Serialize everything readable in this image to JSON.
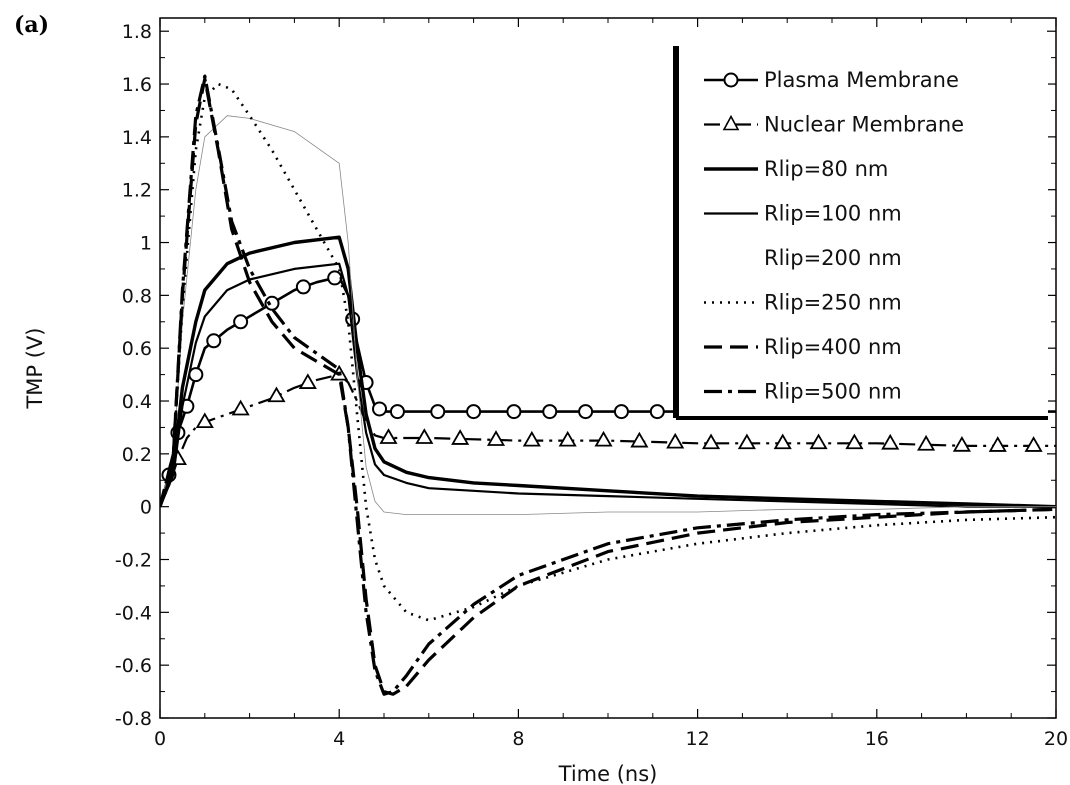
{
  "panel_label": "(a)",
  "chart_data": {
    "type": "line",
    "xlabel": "Time (ns)",
    "ylabel": "TMP (V)",
    "xlim": [
      0,
      20
    ],
    "ylim": [
      -0.8,
      1.85
    ],
    "xticks": [
      0,
      4,
      8,
      12,
      16,
      20
    ],
    "yticks": [
      -0.8,
      -0.6,
      -0.4,
      -0.2,
      0,
      0.2,
      0.4,
      0.6,
      0.8,
      1,
      1.2,
      1.4,
      1.6,
      1.8
    ],
    "xtick_labels": [
      "0",
      "4",
      "8",
      "12",
      "16",
      "20"
    ],
    "ytick_labels": [
      "-0.8",
      "-0.6",
      "-0.4",
      "-0.2",
      "0",
      "0.2",
      "0.4",
      "0.6",
      "0.8",
      "1",
      "1.2",
      "1.4",
      "1.6",
      "1.8"
    ],
    "grid": false,
    "legend_position": "top-right",
    "series": [
      {
        "name": "Plasma Membrane",
        "style": "solid-circle",
        "color": "#000000",
        "x": [
          0,
          0.2,
          0.4,
          0.6,
          0.8,
          1.0,
          1.5,
          2.0,
          2.5,
          3.0,
          3.5,
          4.0,
          4.2,
          4.4,
          4.6,
          4.8,
          5.0,
          5.5,
          6,
          8,
          10,
          12,
          14,
          16,
          18,
          20
        ],
        "y": [
          0,
          0.12,
          0.28,
          0.38,
          0.5,
          0.6,
          0.67,
          0.72,
          0.77,
          0.82,
          0.85,
          0.87,
          0.8,
          0.62,
          0.47,
          0.38,
          0.36,
          0.36,
          0.36,
          0.36,
          0.36,
          0.36,
          0.36,
          0.36,
          0.36,
          0.36
        ],
        "markers_x": [
          0.2,
          0.4,
          0.6,
          0.8,
          1.2,
          1.8,
          2.5,
          3.2,
          3.9,
          4.3,
          4.6,
          4.9,
          5.3,
          6.2,
          7.0,
          7.9,
          8.7,
          9.5,
          10.3,
          11.1
        ]
      },
      {
        "name": "Nuclear Membrane",
        "style": "dashdot-triangle",
        "color": "#000000",
        "x": [
          0,
          0.2,
          0.4,
          0.6,
          0.8,
          1.0,
          1.5,
          2.0,
          2.5,
          3.0,
          3.5,
          4.0,
          4.2,
          4.4,
          4.6,
          4.8,
          5.0,
          6,
          8,
          10,
          12,
          14,
          16,
          18,
          20
        ],
        "y": [
          0,
          0.08,
          0.18,
          0.26,
          0.3,
          0.32,
          0.35,
          0.38,
          0.41,
          0.45,
          0.48,
          0.5,
          0.47,
          0.4,
          0.32,
          0.27,
          0.26,
          0.26,
          0.25,
          0.25,
          0.24,
          0.24,
          0.24,
          0.23,
          0.23
        ],
        "markers_x": [
          0.4,
          1.0,
          1.8,
          2.6,
          3.3,
          4.0,
          5.1,
          5.9,
          6.7,
          7.5,
          8.3,
          9.1,
          9.9,
          10.7,
          11.5,
          12.3,
          13.1,
          13.9,
          14.7,
          15.5,
          16.3,
          17.1,
          17.9,
          18.7,
          19.5
        ]
      },
      {
        "name": "Rlip=80 nm",
        "style": "solid-thick",
        "color": "#000000",
        "x": [
          0,
          0.3,
          0.5,
          0.8,
          1.0,
          1.5,
          2.0,
          3.0,
          4.0,
          4.2,
          4.4,
          4.6,
          4.8,
          5.0,
          5.5,
          6,
          7,
          8,
          10,
          12,
          14,
          16,
          18,
          20
        ],
        "y": [
          0,
          0.15,
          0.45,
          0.7,
          0.82,
          0.92,
          0.96,
          1.0,
          1.02,
          0.9,
          0.6,
          0.35,
          0.22,
          0.17,
          0.13,
          0.11,
          0.09,
          0.08,
          0.06,
          0.04,
          0.03,
          0.02,
          0.01,
          0.0
        ]
      },
      {
        "name": "Rlip=100 nm",
        "style": "solid",
        "color": "#000000",
        "x": [
          0,
          0.3,
          0.5,
          0.8,
          1.0,
          1.5,
          2.0,
          3.0,
          4.0,
          4.2,
          4.4,
          4.6,
          4.8,
          5.0,
          5.5,
          6,
          7,
          8,
          10,
          12,
          14,
          16,
          18,
          20
        ],
        "y": [
          0,
          0.12,
          0.38,
          0.62,
          0.72,
          0.82,
          0.86,
          0.9,
          0.92,
          0.8,
          0.5,
          0.28,
          0.16,
          0.12,
          0.09,
          0.07,
          0.06,
          0.05,
          0.04,
          0.03,
          0.02,
          0.01,
          0.0,
          0.0
        ]
      },
      {
        "name": "Rlip=200 nm",
        "style": "solid-thin",
        "color": "#000000",
        "x": [
          0,
          0.3,
          0.5,
          0.8,
          1.0,
          1.5,
          2.0,
          3.0,
          4.0,
          4.2,
          4.4,
          4.6,
          4.8,
          5.0,
          5.5,
          6,
          7,
          8,
          10,
          12,
          14,
          16,
          18,
          20
        ],
        "y": [
          0,
          0.2,
          0.7,
          1.2,
          1.4,
          1.48,
          1.47,
          1.42,
          1.3,
          1.0,
          0.5,
          0.15,
          0.02,
          -0.02,
          -0.03,
          -0.03,
          -0.03,
          -0.03,
          -0.02,
          -0.02,
          -0.01,
          -0.01,
          0.0,
          0.0
        ]
      },
      {
        "name": "Rlip=250 nm",
        "style": "dotted",
        "color": "#000000",
        "x": [
          0,
          0.3,
          0.5,
          0.8,
          1.0,
          1.3,
          1.6,
          2.0,
          2.5,
          3.0,
          3.5,
          4.0,
          4.2,
          4.4,
          4.6,
          4.8,
          5.0,
          5.5,
          6.0,
          7.0,
          8.0,
          10,
          12,
          14,
          16,
          18,
          20
        ],
        "y": [
          0,
          0.2,
          0.75,
          1.35,
          1.55,
          1.6,
          1.58,
          1.48,
          1.35,
          1.2,
          1.05,
          0.9,
          0.7,
          0.35,
          0.0,
          -0.2,
          -0.3,
          -0.4,
          -0.43,
          -0.38,
          -0.3,
          -0.2,
          -0.14,
          -0.1,
          -0.07,
          -0.05,
          -0.04
        ]
      },
      {
        "name": "Rlip=400 nm",
        "style": "dashed",
        "color": "#000000",
        "x": [
          0,
          0.3,
          0.5,
          0.8,
          1.0,
          1.3,
          1.6,
          2.0,
          2.5,
          3.0,
          3.5,
          4.0,
          4.2,
          4.4,
          4.6,
          4.8,
          5.0,
          5.2,
          5.5,
          6.0,
          7.0,
          8.0,
          10,
          12,
          14,
          16,
          18,
          20
        ],
        "y": [
          0,
          0.2,
          0.8,
          1.45,
          1.62,
          1.35,
          1.05,
          0.85,
          0.7,
          0.6,
          0.55,
          0.5,
          0.3,
          0.0,
          -0.35,
          -0.6,
          -0.7,
          -0.71,
          -0.68,
          -0.58,
          -0.42,
          -0.3,
          -0.17,
          -0.1,
          -0.06,
          -0.04,
          -0.02,
          -0.01
        ]
      },
      {
        "name": "Rlip=500 nm",
        "style": "dashdot",
        "color": "#000000",
        "x": [
          0,
          0.3,
          0.5,
          0.8,
          1.0,
          1.3,
          1.6,
          2.0,
          2.5,
          3.0,
          3.5,
          4.0,
          4.2,
          4.4,
          4.6,
          4.8,
          5.0,
          5.2,
          5.5,
          6.0,
          7.0,
          8.0,
          10,
          12,
          14,
          16,
          18,
          20
        ],
        "y": [
          0,
          0.2,
          0.82,
          1.48,
          1.63,
          1.36,
          1.08,
          0.9,
          0.75,
          0.64,
          0.58,
          0.52,
          0.3,
          -0.05,
          -0.4,
          -0.62,
          -0.71,
          -0.7,
          -0.64,
          -0.52,
          -0.37,
          -0.26,
          -0.14,
          -0.08,
          -0.05,
          -0.03,
          -0.02,
          -0.01
        ]
      }
    ]
  }
}
